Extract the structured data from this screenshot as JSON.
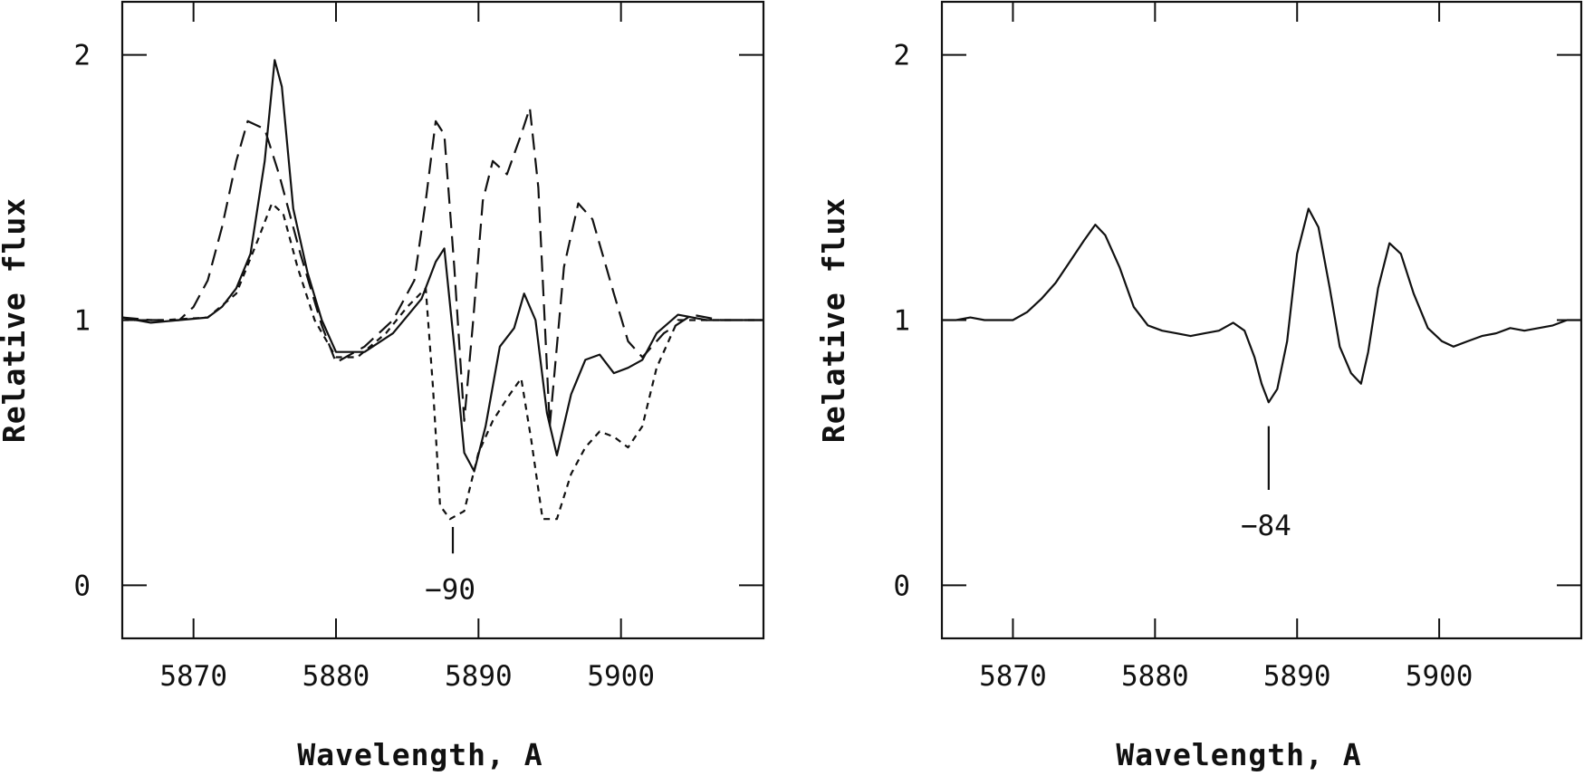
{
  "chart_data": [
    {
      "type": "line",
      "xlabel": "Wavelength, A",
      "ylabel": "Relative flux",
      "xlim": [
        5865,
        5910
      ],
      "ylim": [
        -0.2,
        2.2
      ],
      "xticks": [
        5870,
        5880,
        5890,
        5900
      ],
      "yticks": [
        0,
        1,
        2
      ],
      "x_tick_labels": [
        "5870",
        "5880",
        "5890",
        "5900"
      ],
      "y_tick_labels": [
        "0",
        "1",
        "2"
      ],
      "annotation": {
        "text": "−90",
        "x": 5888.2,
        "y_from": 0.22,
        "y_to": 0.12
      },
      "series": [
        {
          "style": "solid",
          "x": [
            5865,
            5867,
            5869,
            5871,
            5872,
            5873,
            5874,
            5875,
            5875.7,
            5876.2,
            5877,
            5878,
            5879,
            5880,
            5882,
            5884,
            5886,
            5887,
            5887.6,
            5888.3,
            5889,
            5889.7,
            5890.5,
            5891.5,
            5892.5,
            5893.2,
            5894,
            5894.8,
            5895.5,
            5896.5,
            5897.5,
            5898.5,
            5899.5,
            5900.5,
            5901.5,
            5902.5,
            5904,
            5906,
            5908,
            5910
          ],
          "y": [
            1.01,
            0.99,
            1.0,
            1.01,
            1.05,
            1.12,
            1.25,
            1.6,
            1.98,
            1.88,
            1.42,
            1.18,
            1.0,
            0.88,
            0.88,
            0.95,
            1.08,
            1.22,
            1.27,
            0.9,
            0.5,
            0.43,
            0.6,
            0.9,
            0.97,
            1.1,
            1.0,
            0.65,
            0.49,
            0.72,
            0.85,
            0.87,
            0.8,
            0.82,
            0.85,
            0.95,
            1.02,
            1.0,
            1.0,
            1.0
          ]
        },
        {
          "style": "long-dash",
          "x": [
            5865,
            5867,
            5869,
            5870,
            5871,
            5872,
            5873,
            5873.8,
            5875,
            5876,
            5877.5,
            5879,
            5880,
            5882,
            5884,
            5885.5,
            5886.3,
            5887,
            5887.6,
            5888.3,
            5889,
            5889.6,
            5890.3,
            5891,
            5892,
            5893,
            5893.6,
            5894.2,
            5895,
            5896,
            5897,
            5898,
            5899.5,
            5900.5,
            5901.5,
            5903,
            5905,
            5907,
            5910
          ],
          "y": [
            1.01,
            1.0,
            1.0,
            1.05,
            1.15,
            1.35,
            1.6,
            1.75,
            1.72,
            1.55,
            1.25,
            0.98,
            0.84,
            0.9,
            1.0,
            1.15,
            1.45,
            1.75,
            1.7,
            1.2,
            0.62,
            0.98,
            1.45,
            1.6,
            1.55,
            1.7,
            1.8,
            1.5,
            0.6,
            1.2,
            1.44,
            1.38,
            1.1,
            0.92,
            0.86,
            0.95,
            1.02,
            1.0,
            1.0
          ]
        },
        {
          "style": "short-dash",
          "x": [
            5865,
            5868,
            5871,
            5873,
            5874.5,
            5875.5,
            5876.3,
            5877.3,
            5878.5,
            5880,
            5881.5,
            5883.5,
            5885,
            5886.3,
            5886.8,
            5887.3,
            5888,
            5889,
            5890,
            5891,
            5892.2,
            5893,
            5893.7,
            5894.5,
            5895.5,
            5896.5,
            5897.5,
            5898.5,
            5899.5,
            5900.5,
            5901.5,
            5902.5,
            5904,
            5906,
            5908,
            5910
          ],
          "y": [
            1.0,
            1.0,
            1.01,
            1.1,
            1.3,
            1.44,
            1.4,
            1.2,
            1.0,
            0.86,
            0.86,
            0.95,
            1.05,
            1.12,
            0.75,
            0.3,
            0.25,
            0.28,
            0.5,
            0.62,
            0.72,
            0.78,
            0.55,
            0.25,
            0.25,
            0.42,
            0.52,
            0.58,
            0.56,
            0.52,
            0.6,
            0.82,
            1.0,
            1.0,
            1.0,
            1.0
          ]
        }
      ]
    },
    {
      "type": "line",
      "xlabel": "Wavelength, A",
      "ylabel": "Relative flux",
      "xlim": [
        5865,
        5910
      ],
      "ylim": [
        -0.2,
        2.2
      ],
      "xticks": [
        5870,
        5880,
        5890,
        5900
      ],
      "yticks": [
        0,
        1,
        2
      ],
      "x_tick_labels": [
        "5870",
        "5880",
        "5890",
        "5900"
      ],
      "y_tick_labels": [
        "0",
        "1",
        "2"
      ],
      "annotation": {
        "text": "−84",
        "x": 5888.0,
        "y_from": 0.6,
        "y_to": 0.36
      },
      "series": [
        {
          "style": "solid",
          "x": [
            5865,
            5866,
            5867,
            5868,
            5869,
            5870,
            5871,
            5872,
            5873,
            5874,
            5875,
            5875.8,
            5876.5,
            5877.5,
            5878.5,
            5879.5,
            5880.5,
            5881.5,
            5882.5,
            5883.5,
            5884.5,
            5885.5,
            5886.3,
            5887,
            5887.5,
            5888,
            5888.6,
            5889.3,
            5890,
            5890.8,
            5891.5,
            5892.3,
            5893,
            5893.8,
            5894.5,
            5895,
            5895.7,
            5896.5,
            5897.3,
            5898.2,
            5899.2,
            5900.2,
            5901,
            5902,
            5903,
            5904,
            5905,
            5906,
            5907,
            5908,
            5909,
            5910
          ],
          "y": [
            1.0,
            1.0,
            1.01,
            1.0,
            1.0,
            1.0,
            1.03,
            1.08,
            1.14,
            1.22,
            1.3,
            1.36,
            1.32,
            1.2,
            1.05,
            0.98,
            0.96,
            0.95,
            0.94,
            0.95,
            0.96,
            0.99,
            0.96,
            0.86,
            0.76,
            0.69,
            0.74,
            0.92,
            1.25,
            1.42,
            1.35,
            1.12,
            0.9,
            0.8,
            0.76,
            0.88,
            1.12,
            1.29,
            1.25,
            1.1,
            0.97,
            0.92,
            0.9,
            0.92,
            0.94,
            0.95,
            0.97,
            0.96,
            0.97,
            0.98,
            1.0,
            1.0
          ]
        }
      ]
    }
  ]
}
